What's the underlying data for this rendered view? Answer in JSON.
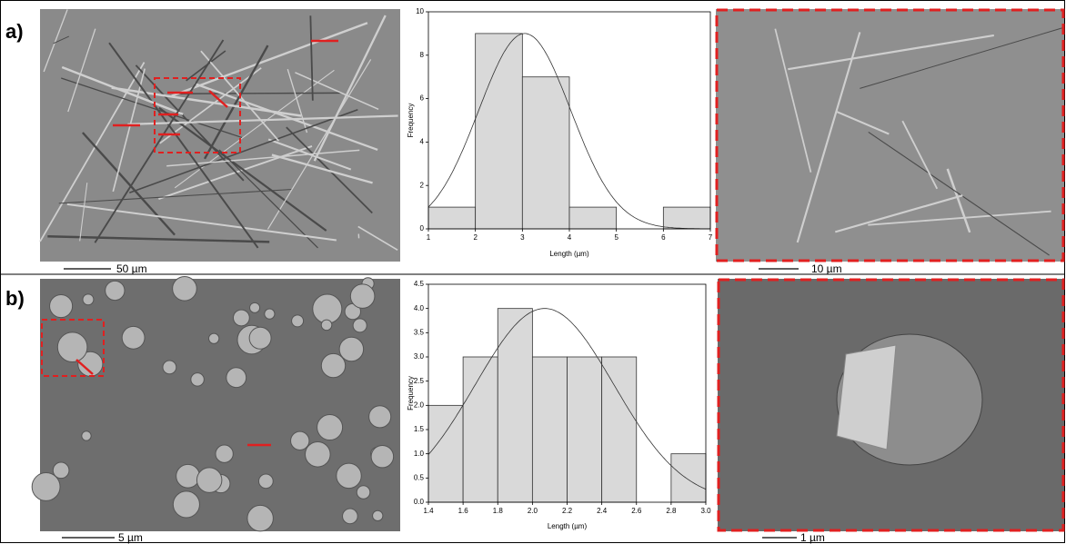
{
  "panels": [
    {
      "label": "a)",
      "scale_bars": [
        "50 µm",
        "10 µm"
      ]
    },
    {
      "label": "b)",
      "scale_bars": [
        "5 µm",
        "1 µm"
      ]
    }
  ],
  "chart_data": [
    {
      "type": "histogram",
      "xlabel": "Length (µm)",
      "ylabel": "Frequency",
      "color": "#d9d9d9",
      "bins": [
        1,
        2,
        3,
        4,
        5,
        6,
        7
      ],
      "values": [
        1,
        9,
        7,
        1,
        0,
        1
      ],
      "xlim": [
        1,
        7
      ],
      "xticks": [
        1,
        2,
        3,
        4,
        5,
        6,
        7
      ],
      "ylim": [
        0,
        10
      ],
      "yticks": [
        0,
        2,
        4,
        6,
        8,
        10
      ],
      "fit": {
        "peak": 9,
        "mean": 3.05,
        "sd": 0.98
      }
    },
    {
      "type": "histogram",
      "xlabel": "Length (µm)",
      "ylabel": "Frequency",
      "color": "#d9d9d9",
      "bins": [
        1.4,
        1.6,
        1.8,
        2.0,
        2.2,
        2.4,
        2.6,
        2.8,
        3.0
      ],
      "values": [
        2,
        3,
        4,
        3,
        3,
        3,
        0,
        1
      ],
      "xlim": [
        1.4,
        3.0
      ],
      "xticks": [
        1.4,
        1.6,
        1.8,
        {
          "value": 2,
          "label": "2.0"
        },
        2.2,
        2.4,
        2.6,
        2.8,
        {
          "value": 3,
          "label": "3.0"
        }
      ],
      "ylim": [
        0,
        4.5
      ],
      "yticks": [
        {
          "value": 0,
          "label": "0.0"
        },
        0.5,
        {
          "value": 1,
          "label": "1.0"
        },
        1.5,
        {
          "value": 2,
          "label": "2.0"
        },
        2.5,
        {
          "value": 3,
          "label": "3.0"
        },
        3.5,
        {
          "value": 4,
          "label": "4.0"
        },
        4.5
      ],
      "fit": {
        "peak": 4,
        "mean": 2.07,
        "sd": 0.4
      }
    }
  ]
}
